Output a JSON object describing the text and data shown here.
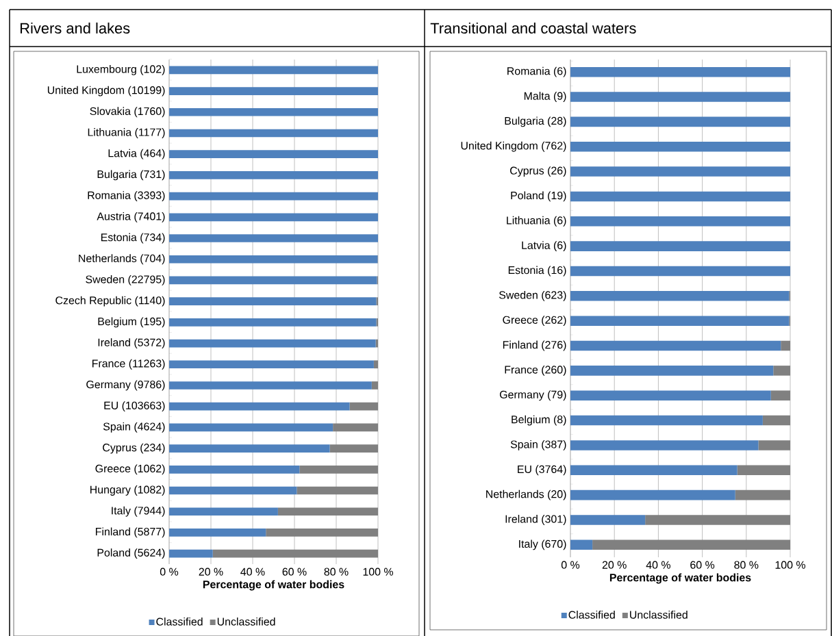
{
  "chart_data": [
    {
      "type": "bar",
      "orientation": "horizontal",
      "stacked": true,
      "title": "Rivers and lakes",
      "xlabel": "Percentage of water bodies",
      "categories": [
        "Luxembourg (102)",
        "United Kingdom (10199)",
        "Slovakia (1760)",
        "Lithuania (1177)",
        "Latvia (464)",
        "Bulgaria (731)",
        "Romania (3393)",
        "Austria (7401)",
        "Estonia (734)",
        "Netherlands (704)",
        "Sweden (22795)",
        "Czech Republic (1140)",
        "Belgium (195)",
        "Ireland (5372)",
        "France (11263)",
        "Germany (9786)",
        "EU (103663)",
        "Spain (4624)",
        "Cyprus (234)",
        "Greece (1062)",
        "Hungary (1082)",
        "Italy (7944)",
        "Finland (5877)",
        "Poland (5624)"
      ],
      "series": [
        {
          "name": "Classified",
          "color": "#4f81bd",
          "values": [
            100,
            100,
            100,
            100,
            100,
            100,
            100,
            100,
            100,
            99.8,
            99.5,
            99.2,
            99.2,
            98.9,
            98,
            97,
            86.4,
            78.4,
            76.9,
            62.4,
            61.1,
            52.1,
            46.3,
            20.9
          ]
        },
        {
          "name": "Unclassified",
          "color": "#808080",
          "values": [
            0,
            0,
            0,
            0,
            0,
            0,
            0,
            0,
            0,
            0.2,
            0.5,
            0.8,
            0.8,
            1.1,
            2,
            3,
            13.6,
            21.6,
            23.1,
            37.6,
            38.9,
            47.9,
            53.7,
            79.1
          ]
        }
      ],
      "xlim": [
        0,
        100
      ],
      "xticks": [
        {
          "value": 0,
          "label": "0 %"
        },
        {
          "value": 20,
          "label": "20 %"
        },
        {
          "value": 40,
          "label": "40 %"
        },
        {
          "value": 60,
          "label": "60 %"
        },
        {
          "value": 80,
          "label": "80 %"
        },
        {
          "value": 100,
          "label": "100 %"
        }
      ],
      "grid": "x",
      "legend": "bottom"
    },
    {
      "type": "bar",
      "orientation": "horizontal",
      "stacked": true,
      "title": "Transitional and coastal waters",
      "xlabel": "Percentage of water bodies",
      "categories": [
        "Romania (6)",
        "Malta (9)",
        "Bulgaria (28)",
        "United Kingdom (762)",
        "Cyprus (26)",
        "Poland (19)",
        "Lithuania (6)",
        "Latvia (6)",
        "Estonia (16)",
        "Sweden (623)",
        "Greece (262)",
        "Finland (276)",
        "France (260)",
        "Germany (79)",
        "Belgium (8)",
        "Spain (387)",
        "EU (3764)",
        "Netherlands (20)",
        "Ireland (301)",
        "Italy (670)"
      ],
      "series": [
        {
          "name": "Classified",
          "color": "#4f81bd",
          "values": [
            100,
            100,
            100,
            100,
            100,
            100,
            100,
            100,
            100,
            99.5,
            99.5,
            95.7,
            92.3,
            91.2,
            87.5,
            85.5,
            75.9,
            75,
            34,
            10
          ]
        },
        {
          "name": "Unclassified",
          "color": "#808080",
          "values": [
            0,
            0,
            0,
            0,
            0,
            0,
            0,
            0,
            0,
            0.5,
            0.5,
            4.3,
            7.7,
            8.8,
            12.5,
            14.5,
            24.1,
            25,
            66,
            90
          ]
        }
      ],
      "xlim": [
        0,
        100
      ],
      "xticks": [
        {
          "value": 0,
          "label": "0 %"
        },
        {
          "value": 20,
          "label": "20 %"
        },
        {
          "value": 40,
          "label": "40 %"
        },
        {
          "value": 60,
          "label": "60 %"
        },
        {
          "value": 80,
          "label": "80 %"
        },
        {
          "value": 100,
          "label": "100 %"
        }
      ],
      "grid": "x",
      "legend": "bottom"
    }
  ]
}
